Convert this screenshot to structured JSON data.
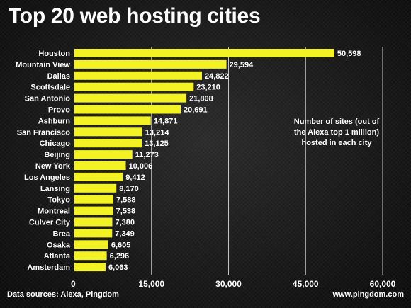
{
  "header": {
    "title": "Top 20 web hosting cities"
  },
  "annotation": "Number of sites (out of the Alexa top 1 million) hosted in each city",
  "footer": {
    "source": "Data sources: Alexa, Pingdom",
    "url": "www.pingdom.com"
  },
  "colors": {
    "bar": "#f2f224",
    "background": "#161616",
    "text": "#ffffff",
    "gridline": "#c8c8c8"
  },
  "chart_data": {
    "type": "bar",
    "orientation": "horizontal",
    "title": "Top 20 web hosting cities",
    "xlabel": "",
    "ylabel": "",
    "xlim": [
      0,
      60000
    ],
    "x_ticks": [
      "0",
      "15,000",
      "30,000",
      "45,000",
      "60,000"
    ],
    "grid": true,
    "categories": [
      "Houston",
      "Mountain View",
      "Dallas",
      "Scottsdale",
      "San Antonio",
      "Provo",
      "Ashburn",
      "San Francisco",
      "Chicago",
      "Beijing",
      "New York",
      "Los Angeles",
      "Lansing",
      "Tokyo",
      "Montreal",
      "Culver City",
      "Brea",
      "Osaka",
      "Atlanta",
      "Amsterdam"
    ],
    "values": [
      50598,
      29594,
      24822,
      23210,
      21808,
      20691,
      14871,
      13214,
      13125,
      11273,
      10006,
      9412,
      8170,
      7588,
      7538,
      7380,
      7349,
      6605,
      6296,
      6063
    ],
    "value_labels": [
      "50,598",
      "29,594",
      "24,822",
      "23,210",
      "21,808",
      "20,691",
      "14,871",
      "13,214",
      "13,125",
      "11,273",
      "10,006",
      "9,412",
      "8,170",
      "7,588",
      "7,538",
      "7,380",
      "7,349",
      "6,605",
      "6,296",
      "6,063"
    ]
  }
}
